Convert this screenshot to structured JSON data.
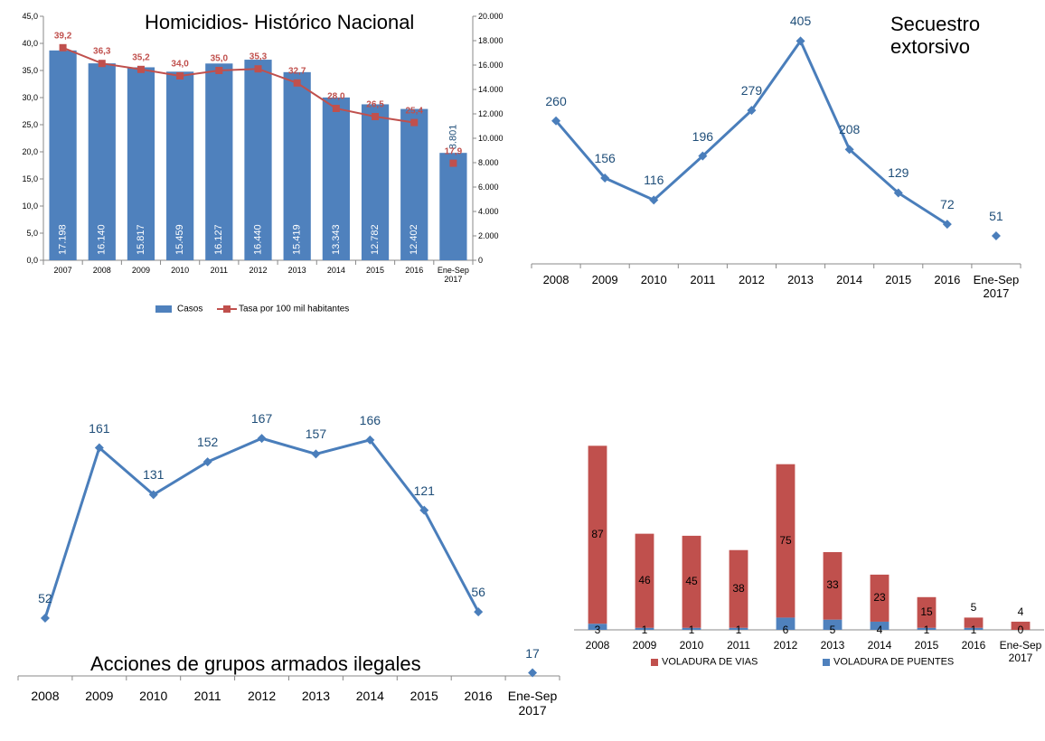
{
  "chart_data": [
    {
      "type": "bar",
      "title": "Homicidios- Histórico Nacional",
      "categories": [
        "2007",
        "2008",
        "2009",
        "2010",
        "2011",
        "2012",
        "2013",
        "2014",
        "2015",
        "2016",
        "Ene-Sep 2017"
      ],
      "series": [
        {
          "name": "Casos",
          "type": "bar",
          "axis": "y2",
          "color": "#4f81bd",
          "values": [
            17198,
            16140,
            15817,
            15459,
            16127,
            16440,
            15419,
            13343,
            12782,
            12402,
            8801
          ],
          "value_labels": [
            "17.198",
            "16.140",
            "15.817",
            "15.459",
            "16.127",
            "16.440",
            "15.419",
            "13.343",
            "12.782",
            "12.402",
            "8.801"
          ]
        },
        {
          "name": "Tasa por 100 mil habitantes",
          "type": "line",
          "marker": "square",
          "color": "#c0504d",
          "values": [
            39.2,
            36.3,
            35.2,
            34.0,
            35.0,
            35.3,
            32.7,
            28.0,
            26.5,
            25.4,
            null
          ],
          "value_labels": [
            "39,2",
            "36,3",
            "35,2",
            "34,0",
            "35,0",
            "35,3",
            "32,7",
            "28,0",
            "26,5",
            "25,4",
            null
          ]
        },
        {
          "type": "line",
          "marker": "square",
          "color": "#c0504d",
          "values": [
            null,
            null,
            null,
            null,
            null,
            null,
            null,
            null,
            null,
            null,
            17.9
          ],
          "value_labels": [
            null,
            null,
            null,
            null,
            null,
            null,
            null,
            null,
            null,
            null,
            "17,9"
          ]
        }
      ],
      "ylim": [
        0,
        45
      ],
      "yticks": [
        {
          "value": 0,
          "label": "0,0"
        },
        {
          "value": 5,
          "label": "5,0"
        },
        {
          "value": 10,
          "label": "10,0"
        },
        {
          "value": 15,
          "label": "15,0"
        },
        {
          "value": 20,
          "label": "20,0"
        },
        {
          "value": 25,
          "label": "25,0"
        },
        {
          "value": 30,
          "label": "30,0"
        },
        {
          "value": 35,
          "label": "35,0"
        },
        {
          "value": 40,
          "label": "40,0"
        },
        {
          "value": 45,
          "label": "45,0"
        }
      ],
      "y2lim": [
        0,
        20000
      ],
      "y2ticks": [
        0,
        {
          "value": 2000,
          "label": "2.000"
        },
        {
          "value": 4000,
          "label": "4.000"
        },
        {
          "value": 6000,
          "label": "6.000"
        },
        {
          "value": 8000,
          "label": "8.000"
        },
        {
          "value": 10000,
          "label": "10.000"
        },
        {
          "value": 12000,
          "label": "12.000"
        },
        {
          "value": 14000,
          "label": "14.000"
        },
        {
          "value": 16000,
          "label": "16.000"
        },
        {
          "value": 18000,
          "label": "18.000"
        },
        {
          "value": 20000,
          "label": "20.000"
        }
      ],
      "legend": "bottom"
    },
    {
      "type": "line",
      "title": "Secuestro extorsivo",
      "categories": [
        "2008",
        "2009",
        "2010",
        "2011",
        "2012",
        "2013",
        "2014",
        "2015",
        "2016",
        "Ene-Sep 2017"
      ],
      "series": [
        {
          "type": "line",
          "marker": "diamond",
          "color": "#4a7ebb",
          "values": [
            260,
            156,
            116,
            196,
            279,
            405,
            208,
            129,
            72,
            null
          ]
        },
        {
          "type": "line",
          "marker": "diamond",
          "color": "#4a7ebb",
          "values": [
            null,
            null,
            null,
            null,
            null,
            null,
            null,
            null,
            null,
            51
          ]
        }
      ],
      "ylim": [
        0,
        450
      ]
    },
    {
      "type": "line",
      "title": "Acciones de grupos armados ilegales",
      "categories": [
        "2008",
        "2009",
        "2010",
        "2011",
        "2012",
        "2013",
        "2014",
        "2015",
        "2016",
        "Ene-Sep 2017"
      ],
      "series": [
        {
          "type": "line",
          "marker": "diamond",
          "color": "#4a7ebb",
          "values": [
            52,
            161,
            131,
            152,
            167,
            157,
            166,
            121,
            56,
            null
          ]
        },
        {
          "type": "line",
          "marker": "diamond",
          "color": "#4a7ebb",
          "values": [
            null,
            null,
            null,
            null,
            null,
            null,
            null,
            null,
            null,
            17
          ]
        }
      ],
      "ylim": [
        15,
        185
      ]
    },
    {
      "type": "stacked_bar",
      "categories": [
        "2008",
        "2009",
        "2010",
        "2011",
        "2012",
        "2013",
        "2014",
        "2015",
        "2016",
        "Ene-Sep 2017"
      ],
      "series": [
        {
          "name": "VOLADURA DE VIAS",
          "color": "#c0504d",
          "values": [
            87,
            46,
            45,
            38,
            75,
            33,
            23,
            15,
            5,
            4
          ]
        },
        {
          "name": "VOLADURA DE PUENTES",
          "color": "#4f81bd",
          "values": [
            3,
            1,
            1,
            1,
            6,
            5,
            4,
            1,
            1,
            0
          ]
        }
      ],
      "ylim": [
        0,
        95
      ],
      "legend": "bottom"
    }
  ]
}
